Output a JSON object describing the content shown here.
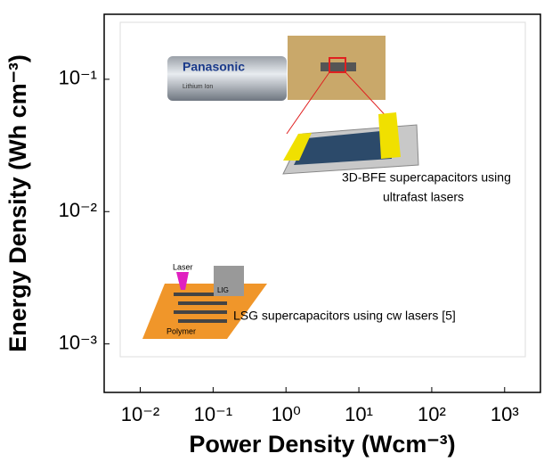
{
  "chart_data": {
    "type": "scatter",
    "x_label": "Power Density (Wcm⁻³)",
    "y_label": "Energy Density (Wh cm⁻³)",
    "xscale": "log",
    "yscale": "log",
    "xlim": [
      0.0032,
      3100
    ],
    "ylim": [
      0.00043,
      0.31
    ],
    "xticks": [
      {
        "value": 0.01,
        "label": "10⁻²"
      },
      {
        "value": 0.1,
        "label": "10⁻¹"
      },
      {
        "value": 1,
        "label": "10⁰"
      },
      {
        "value": 10,
        "label": "10¹"
      },
      {
        "value": 100,
        "label": "10²"
      },
      {
        "value": 1000,
        "label": "10³"
      }
    ],
    "yticks": [
      {
        "value": 0.001,
        "label": "10⁻³"
      },
      {
        "value": 0.01,
        "label": "10⁻²"
      },
      {
        "value": 0.1,
        "label": "10⁻¹"
      }
    ],
    "series": [],
    "annotations": [
      "3D-BFE supercapacitors using",
      "ultrafast lasers",
      "LSG supercapacitors using cw lasers [5]",
      "Panasonic",
      "Lithium Ion",
      "Laser",
      "LIG",
      "Polymer"
    ]
  }
}
